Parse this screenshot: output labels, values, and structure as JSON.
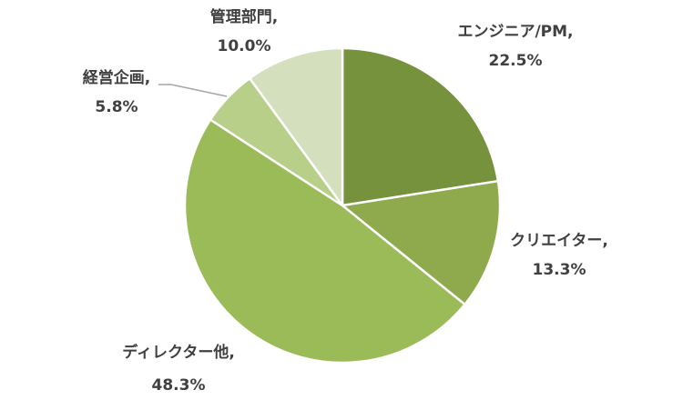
{
  "chart_data": {
    "type": "pie",
    "title": "",
    "start_angle_deg": 0,
    "direction": "clockwise",
    "legend": "none",
    "slices": [
      {
        "name": "エンジニア/PM",
        "value": 22.5,
        "label_value": "22.5%",
        "color": "#76923c"
      },
      {
        "name": "クリエイター",
        "value": 13.3,
        "label_value": "13.3%",
        "color": "#8faa4d"
      },
      {
        "name": "ディレクター他",
        "value": 48.3,
        "label_value": "48.3%",
        "color": "#9bbb59"
      },
      {
        "name": "経営企画",
        "value": 5.8,
        "label_value": "5.8%",
        "color": "#b8cf8a"
      },
      {
        "name": "管理部門",
        "value": 10.0,
        "label_value": "10.0%",
        "color": "#d3dfbd"
      }
    ],
    "separator": ","
  }
}
